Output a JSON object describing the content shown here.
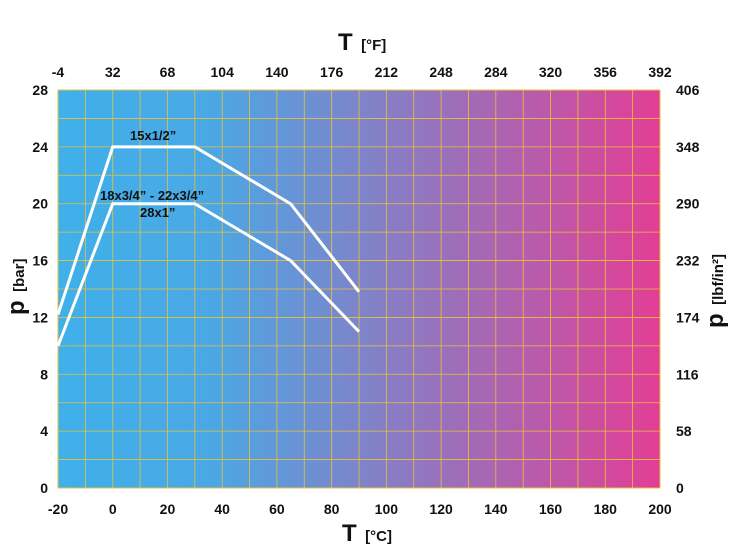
{
  "chart_data": {
    "type": "line",
    "x_bottom": {
      "title_symbol": "T",
      "title_unit": "[°C]",
      "ticks": [
        -20,
        0,
        20,
        40,
        60,
        80,
        100,
        120,
        140,
        160,
        180,
        200
      ],
      "range": [
        -20,
        200
      ]
    },
    "x_top": {
      "title_symbol": "T",
      "title_unit": "[°F]",
      "ticks": [
        -4,
        32,
        68,
        104,
        140,
        176,
        212,
        248,
        284,
        320,
        356,
        392
      ]
    },
    "y_left": {
      "title_symbol": "p",
      "title_unit": "[bar]",
      "ticks": [
        0,
        4,
        8,
        12,
        16,
        20,
        24,
        28
      ],
      "range": [
        0,
        28
      ]
    },
    "y_right": {
      "title_symbol": "p",
      "title_unit": "[lbf/in²]",
      "ticks": [
        0,
        58,
        116,
        174,
        232,
        290,
        348,
        406
      ]
    },
    "grid": true,
    "background_gradient": [
      "#3fb0ea",
      "#e23e95"
    ],
    "grid_color": "#e8c23a",
    "line_color": "#ffffff",
    "series": [
      {
        "name": "15x1/2”",
        "x": [
          -20,
          0,
          30,
          65,
          90
        ],
        "y": [
          12.2,
          24,
          24,
          20,
          13.8
        ]
      },
      {
        "name": "18x3/4” -  22x3/4”",
        "name_line2": "28x1”",
        "x": [
          -20,
          0,
          30,
          65,
          90
        ],
        "y": [
          10,
          20,
          20,
          16,
          11
        ]
      }
    ]
  }
}
